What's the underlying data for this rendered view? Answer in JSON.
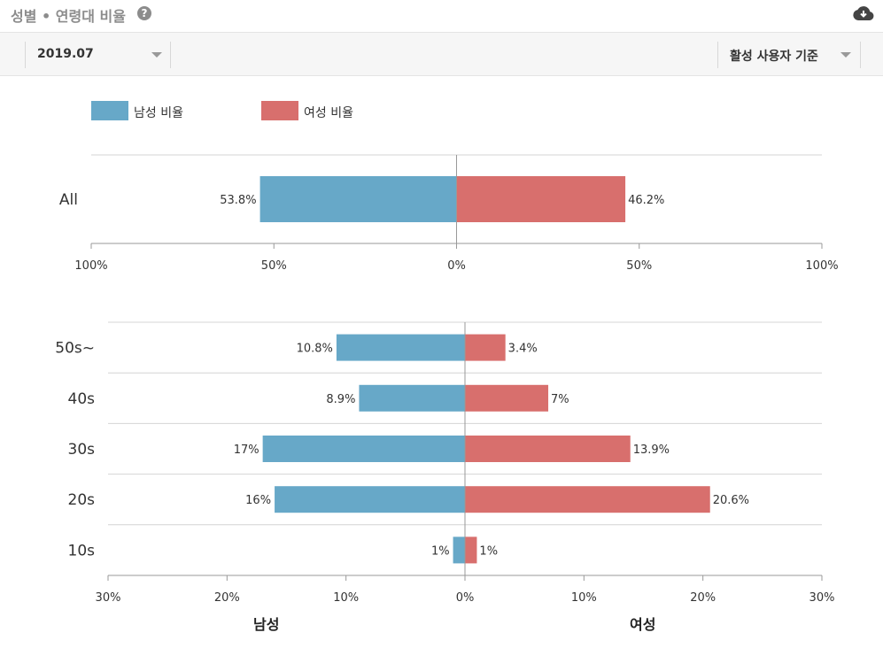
{
  "header": {
    "title": "성별 • 연령대 비율",
    "help_icon": "question-circle-icon",
    "download_icon": "cloud-download-icon"
  },
  "filters": {
    "period": "2019.07",
    "basis": "활성 사용자 기준"
  },
  "legend": {
    "male_label": "남성 비율",
    "female_label": "여성 비율",
    "male_color": "#67a8c8",
    "female_color": "#d86f6d"
  },
  "chart_data": [
    {
      "type": "bar",
      "orientation": "horizontal-diverging",
      "categories": [
        "All"
      ],
      "series": [
        {
          "name": "남성 비율",
          "values": [
            53.8
          ],
          "labels": [
            "53.8%"
          ]
        },
        {
          "name": "여성 비율",
          "values": [
            46.2
          ],
          "labels": [
            "46.2%"
          ]
        }
      ],
      "xlim": [
        -100,
        100
      ],
      "ticks": [
        -100,
        -50,
        0,
        50,
        100
      ],
      "tick_labels": [
        "100%",
        "50%",
        "0%",
        "50%",
        "100%"
      ],
      "grid": true
    },
    {
      "type": "bar",
      "orientation": "horizontal-diverging",
      "categories": [
        "50s~",
        "40s",
        "30s",
        "20s",
        "10s"
      ],
      "series": [
        {
          "name": "남성 비율",
          "values": [
            10.8,
            8.9,
            17,
            16,
            1
          ],
          "labels": [
            "10.8%",
            "8.9%",
            "17%",
            "16%",
            "1%"
          ]
        },
        {
          "name": "여성 비율",
          "values": [
            3.4,
            7,
            13.9,
            20.6,
            1
          ],
          "labels": [
            "3.4%",
            "7%",
            "13.9%",
            "20.6%",
            "1%"
          ]
        }
      ],
      "xlim": [
        -30,
        30
      ],
      "ticks": [
        -30,
        -20,
        -10,
        0,
        10,
        20,
        30
      ],
      "tick_labels": [
        "30%",
        "20%",
        "10%",
        "0%",
        "10%",
        "20%",
        "30%"
      ],
      "xlabel_left": "남성",
      "xlabel_right": "여성",
      "grid": true
    }
  ]
}
